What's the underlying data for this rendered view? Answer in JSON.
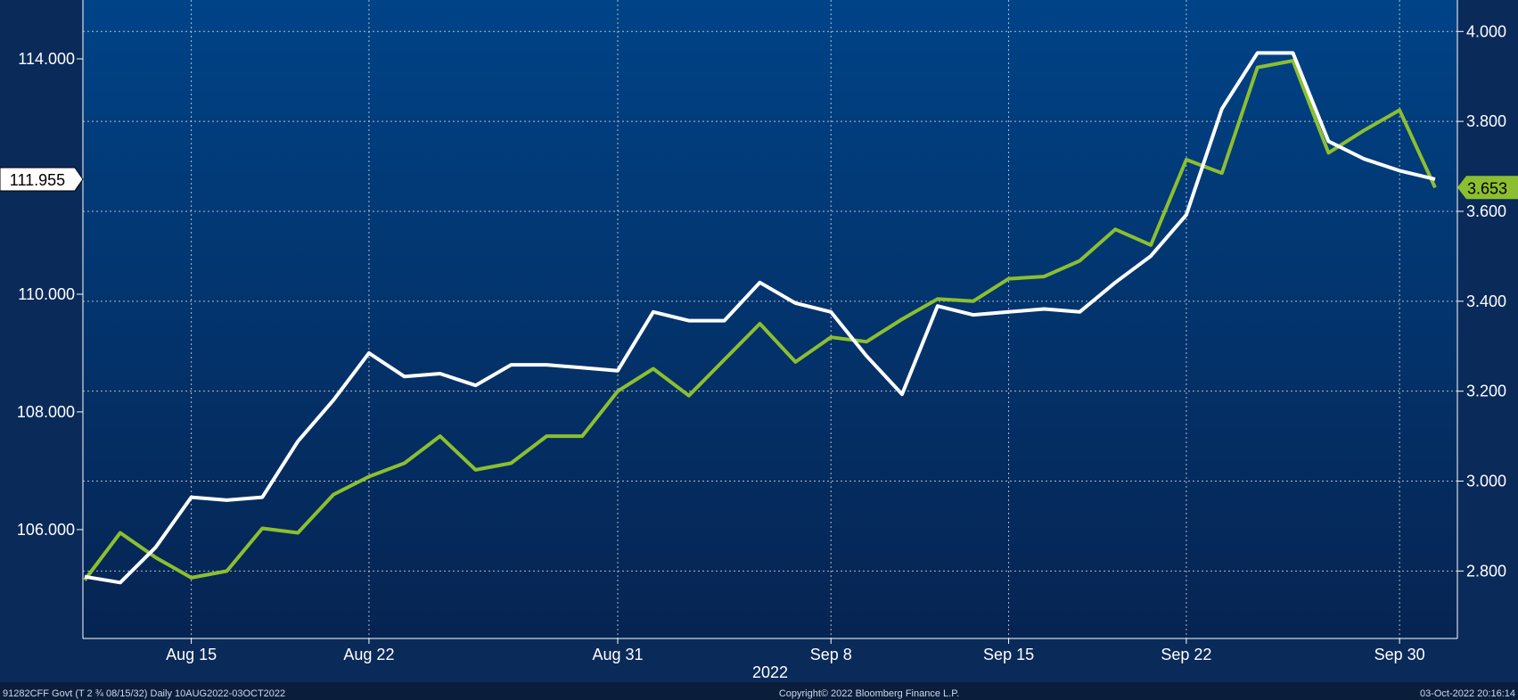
{
  "chart_data": {
    "type": "line",
    "year_label": "2022",
    "x_ticks": [
      {
        "label": "Aug 15",
        "i": 3
      },
      {
        "label": "Aug 22",
        "i": 8
      },
      {
        "label": "Aug 31",
        "i": 15
      },
      {
        "label": "Sep 8",
        "i": 21
      },
      {
        "label": "Sep 15",
        "i": 26
      },
      {
        "label": "Sep 22",
        "i": 31
      },
      {
        "label": "Sep 30",
        "i": 37
      }
    ],
    "left_axis": {
      "ticks": [
        "106.000",
        "108.000",
        "110.000",
        "114.000"
      ],
      "min": 104.15,
      "max": 115.0
    },
    "right_axis": {
      "ticks": [
        "2.800",
        "3.000",
        "3.200",
        "3.400",
        "3.600",
        "3.800",
        "4.000"
      ],
      "min": 2.65,
      "max": 4.07
    },
    "grid": true,
    "series": [
      {
        "color": "#ffffff",
        "axis": "left",
        "values": [
          105.2,
          105.1,
          105.7,
          106.55,
          106.5,
          106.55,
          107.5,
          108.2,
          109.0,
          108.6,
          108.65,
          108.45,
          108.8,
          108.8,
          108.75,
          108.7,
          109.7,
          109.55,
          109.55,
          110.2,
          109.85,
          109.7,
          108.95,
          108.3,
          109.8,
          109.65,
          109.7,
          109.75,
          109.7,
          110.2,
          110.65,
          111.35,
          113.15,
          114.1,
          114.1,
          112.6,
          112.3,
          112.1,
          111.955
        ],
        "last_label": "111.955"
      },
      {
        "color": "#8cbf2f",
        "axis": "right",
        "values": [
          2.78,
          2.885,
          2.83,
          2.785,
          2.8,
          2.895,
          2.885,
          2.97,
          3.01,
          3.04,
          3.1,
          3.025,
          3.04,
          3.1,
          3.1,
          3.2,
          3.25,
          3.19,
          3.27,
          3.35,
          3.265,
          3.32,
          3.31,
          3.36,
          3.405,
          3.4,
          3.45,
          3.455,
          3.49,
          3.56,
          3.525,
          3.715,
          3.685,
          3.92,
          3.935,
          3.73,
          3.78,
          3.825,
          3.653
        ],
        "last_label": "3.653"
      }
    ]
  },
  "footer": {
    "left": "91282CFF Govt (T 2 ¾ 08/15/32)  Daily 10AUG2022-03OCT2022",
    "center": "Copyright© 2022 Bloomberg Finance L.P.",
    "right": "03-Oct-2022 20:16:14"
  }
}
